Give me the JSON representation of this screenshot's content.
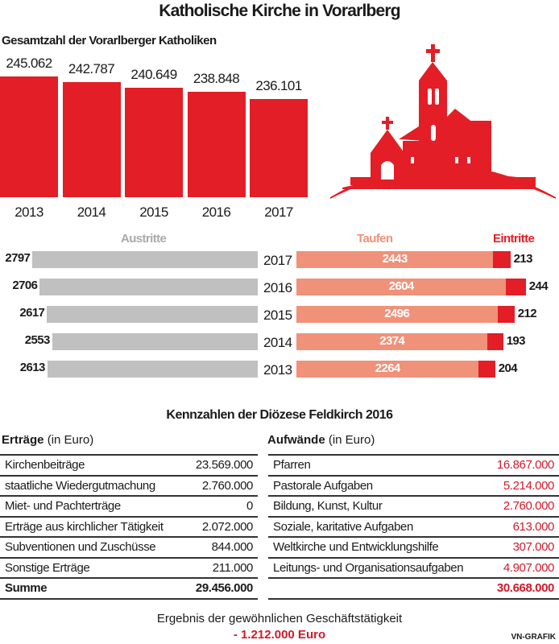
{
  "title": "Katholische Kirche in Vorarlberg",
  "chart_data": [
    {
      "type": "bar",
      "title": "Gesamtzahl der Vorarlberger Katholiken",
      "categories": [
        "2013",
        "2014",
        "2015",
        "2016",
        "2017"
      ],
      "values": [
        245062,
        242787,
        240649,
        238848,
        236101
      ],
      "value_labels": [
        "245.062",
        "242.787",
        "240.649",
        "238.848",
        "236.101"
      ],
      "color": "#e31e26"
    },
    {
      "type": "bar",
      "orientation": "horizontal",
      "categories": [
        "2017",
        "2016",
        "2015",
        "2014",
        "2013"
      ],
      "series": [
        {
          "name": "Austritte",
          "values": [
            2797,
            2706,
            2617,
            2553,
            2613
          ],
          "color": "#c0c0c0"
        },
        {
          "name": "Taufen",
          "values": [
            2443,
            2604,
            2496,
            2374,
            2264
          ],
          "color": "#f0917a"
        },
        {
          "name": "Eintritte",
          "values": [
            213,
            244,
            212,
            193,
            204
          ],
          "color": "#e31e26"
        }
      ]
    }
  ],
  "finance": {
    "title": "Kennzahlen der Diözese  Feldkirch 2016",
    "income": {
      "heading": "Erträge",
      "unit": "(in Euro)",
      "rows": [
        {
          "label": "Kirchenbeiträge",
          "value": "23.569.000"
        },
        {
          "label": "staatliche Wiedergutmachung",
          "value": "2.760.000"
        },
        {
          "label": "Miet- und Pachterträge",
          "value": "0"
        },
        {
          "label": "Erträge aus kirchlicher Tätigkeit",
          "value": "2.072.000"
        },
        {
          "label": "Subventionen und Zuschüsse",
          "value": "844.000"
        },
        {
          "label": "Sonstige Erträge",
          "value": "211.000"
        }
      ],
      "sum_label": "Summe",
      "sum_value": "29.456.000"
    },
    "expenses": {
      "heading": "Aufwände",
      "unit": "(in Euro)",
      "rows": [
        {
          "label": "Pfarren",
          "value": "16.867.000"
        },
        {
          "label": "Pastorale Aufgaben",
          "value": "5.214.000"
        },
        {
          "label": "Bildung, Kunst, Kultur",
          "value": "2.760.000"
        },
        {
          "label": "Soziale, karitative  Aufgaben",
          "value": "613.000"
        },
        {
          "label": "Weltkirche und Entwicklungshilfe",
          "value": "307.000"
        },
        {
          "label": "Leitungs- und Organisationsaufgaben",
          "value": "4.907.000"
        }
      ],
      "sum_value": "30.668.000"
    },
    "result_label": "Ergebnis der gewöhnlichen Geschäftstätigkeit",
    "result_value": "- 1.212.000 Euro"
  },
  "credit": "VN-GRAFIK",
  "icon": "church-icon"
}
